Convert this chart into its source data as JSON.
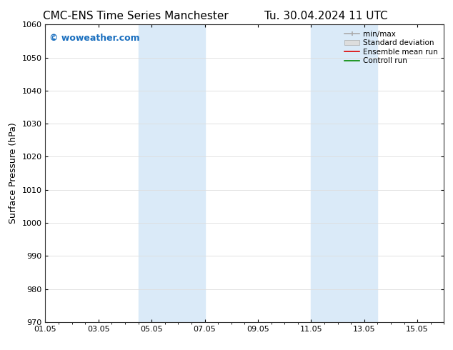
{
  "title_left": "CMC-ENS Time Series Manchester",
  "title_right": "Tu. 30.04.2024 11 UTC",
  "ylabel": "Surface Pressure (hPa)",
  "ylim": [
    970,
    1060
  ],
  "yticks": [
    970,
    980,
    990,
    1000,
    1010,
    1020,
    1030,
    1040,
    1050,
    1060
  ],
  "xlim": [
    0,
    15
  ],
  "xtick_labels": [
    "01.05",
    "03.05",
    "05.05",
    "07.05",
    "09.05",
    "11.05",
    "13.05",
    "15.05"
  ],
  "xtick_positions": [
    0,
    2,
    4,
    6,
    8,
    10,
    12,
    14
  ],
  "shaded_regions": [
    {
      "x_start": 3.5,
      "x_end": 4.5,
      "color": "#daeaf8"
    },
    {
      "x_start": 4.5,
      "x_end": 6.0,
      "color": "#daeaf8"
    },
    {
      "x_start": 10.0,
      "x_end": 11.0,
      "color": "#daeaf8"
    },
    {
      "x_start": 11.0,
      "x_end": 12.5,
      "color": "#daeaf8"
    }
  ],
  "watermark_text": "© woweather.com",
  "watermark_color": "#1a6fbf",
  "watermark_fontsize": 9,
  "legend_labels": [
    "min/max",
    "Standard deviation",
    "Ensemble mean run",
    "Controll run"
  ],
  "legend_colors": [
    "#aaaaaa",
    "#cccccc",
    "#dd0000",
    "#008800"
  ],
  "background_color": "#ffffff",
  "plot_bg_color": "#ffffff",
  "grid_color": "#dddddd",
  "title_fontsize": 11,
  "tick_fontsize": 8,
  "ylabel_fontsize": 9
}
